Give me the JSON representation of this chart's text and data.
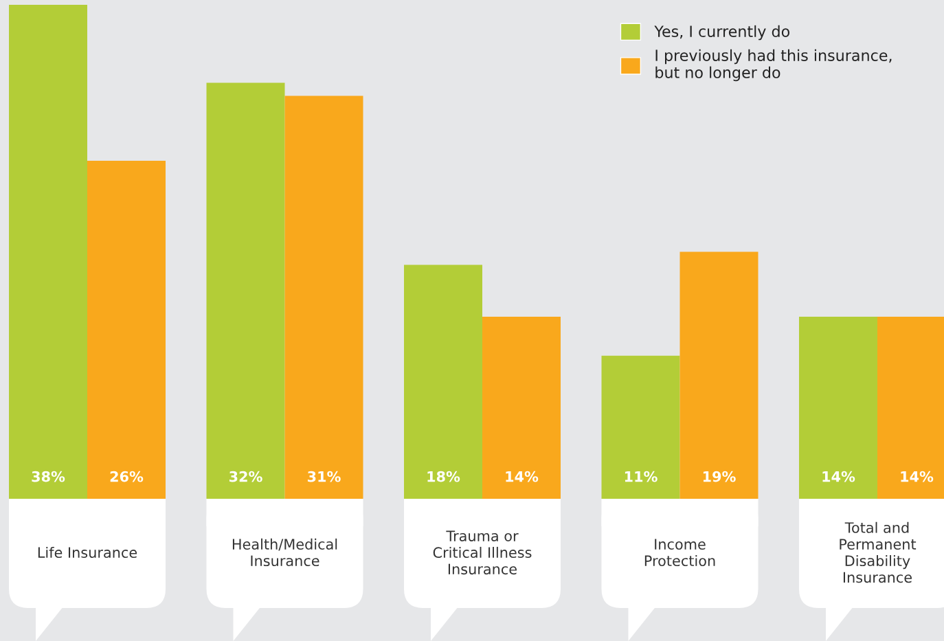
{
  "chart_data": {
    "type": "bar",
    "categories": [
      "Life Insurance",
      "Health/Medical\nInsurance",
      "Trauma or\nCritical Illness\nInsurance",
      "Income\nProtection",
      "Total and\nPermanent\nDisability\nInsurance"
    ],
    "series": [
      {
        "name": "Yes, I currently do",
        "color": "#b3cd37",
        "values": [
          38,
          32,
          18,
          11,
          14
        ],
        "value_labels": [
          "38%",
          "32%",
          "18%",
          "11%",
          "14%"
        ]
      },
      {
        "name": "I previously had this insurance,\nbut no longer do",
        "color": "#f9a81c",
        "values": [
          26,
          31,
          14,
          19,
          14
        ],
        "value_labels": [
          "26%",
          "31%",
          "14%",
          "19%",
          "14%"
        ]
      }
    ],
    "legend": "top right"
  }
}
